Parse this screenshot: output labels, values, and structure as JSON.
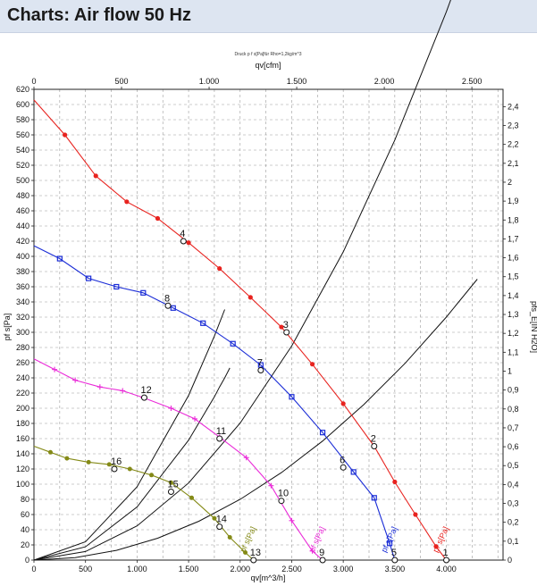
{
  "page": {
    "title": "Charts: Air flow 50 Hz"
  },
  "chart_data": {
    "type": "line",
    "title": "Druck p f s[Pa]für Rho=1,2kg/m^3",
    "x_top_label": "qv[cfm]",
    "x_bottom_label": "qv[m^3/h]",
    "y_left_label": "pf s[Pa]",
    "y_right_label": "pfs_E[IN H2O]",
    "x_range": [
      0,
      4550
    ],
    "x_bottom_ticks": [
      0,
      500,
      1000,
      1500,
      2000,
      2500,
      3000,
      3500,
      4000
    ],
    "x_bottom_tick_labels": [
      "0",
      "500",
      "1.000",
      "1.500",
      "2.000",
      "2.500",
      "3.000",
      "3.500",
      "4.000"
    ],
    "x_top_ticks": [
      0,
      500,
      1000,
      1500,
      2000,
      2500
    ],
    "x_top_tick_labels": [
      "0",
      "500",
      "1.000",
      "1.500",
      "2.000",
      "2.500"
    ],
    "y_range": [
      0,
      620
    ],
    "y_left_ticks": [
      0,
      20,
      40,
      60,
      80,
      100,
      120,
      140,
      160,
      180,
      200,
      220,
      240,
      260,
      280,
      300,
      320,
      340,
      360,
      380,
      400,
      420,
      440,
      460,
      480,
      500,
      520,
      540,
      560,
      580,
      600,
      620
    ],
    "y_left_tick_labels": [
      "0",
      "20",
      "40",
      "60",
      "80",
      "100",
      "120",
      "140",
      "160",
      "180",
      "200",
      "220",
      "240",
      "260",
      "280",
      "300",
      "320",
      "340",
      "360",
      "380",
      "400",
      "420",
      "440",
      "460",
      "480",
      "500",
      "520",
      "540",
      "560",
      "580",
      "600",
      "620"
    ],
    "y_right_range": [
      0,
      2.5
    ],
    "y_right_ticks": [
      0,
      0.1,
      0.2,
      0.3,
      0.4,
      0.5,
      0.6,
      0.7,
      0.8,
      0.9,
      1,
      1.1,
      1.2,
      1.3,
      1.4,
      1.5,
      1.6,
      1.7,
      1.8,
      1.9,
      2,
      2.1,
      2.2,
      2.3,
      2.4,
      2.5
    ],
    "y_right_tick_labels": [
      "0",
      "0,1",
      "0,2",
      "0,3",
      "0,4",
      "0,5",
      "0,6",
      "0,7",
      "0,8",
      "0,9",
      "1",
      "1,1",
      "1,2",
      "1,3",
      "1,4",
      "1,5",
      "1,6",
      "1,7",
      "1,8",
      "1,9",
      "2",
      "2,1",
      "2,2",
      "2,3",
      "2,4",
      "2,5"
    ],
    "grid": true,
    "series": [
      {
        "name": "pf s[Pa]",
        "color": "#e8231f",
        "marker": "dot",
        "x": [
          0,
          300,
          600,
          900,
          1200,
          1500,
          1800,
          2100,
          2400,
          2700,
          3000,
          3300,
          3500,
          3700,
          3900,
          4000
        ],
        "y": [
          606,
          560,
          506,
          472,
          450,
          418,
          384,
          346,
          307,
          258,
          206,
          150,
          103,
          60,
          18,
          0
        ]
      },
      {
        "name": "pf s[Pa]",
        "color": "#1a2cd6",
        "marker": "square",
        "x": [
          0,
          250,
          530,
          800,
          1060,
          1350,
          1640,
          1930,
          2200,
          2500,
          2800,
          3100,
          3300,
          3450,
          3500
        ],
        "y": [
          414,
          397,
          371,
          360,
          352,
          332,
          312,
          285,
          257,
          215,
          168,
          116,
          82,
          22,
          0
        ]
      },
      {
        "name": "pf s[Pa]",
        "color": "#ea2bd8",
        "marker": "plus",
        "x": [
          0,
          200,
          400,
          640,
          860,
          1060,
          1330,
          1560,
          1800,
          2060,
          2300,
          2500,
          2700,
          2800
        ],
        "y": [
          265,
          251,
          237,
          228,
          223,
          214,
          200,
          186,
          162,
          135,
          98,
          52,
          12,
          0
        ]
      },
      {
        "name": "pf s[Pa]",
        "color": "#848a17",
        "marker": "diamond",
        "x": [
          0,
          160,
          320,
          530,
          730,
          930,
          1140,
          1330,
          1530,
          1750,
          1900,
          2050,
          2130
        ],
        "y": [
          150,
          142,
          134,
          129,
          126,
          120,
          112,
          102,
          82,
          55,
          30,
          10,
          0
        ]
      }
    ],
    "system_curves": [
      {
        "x": [
          0,
          500,
          1000,
          1500,
          1750,
          1800,
          1850,
          1900
        ],
        "y": [
          0,
          17.5,
          70,
          158,
          215,
          228,
          240,
          253
        ]
      },
      {
        "x": [
          0,
          500,
          1000,
          1500,
          2000,
          2500,
          3000,
          3500,
          4000,
          4200
        ],
        "y": [
          0,
          11.3,
          45.1,
          101.5,
          180.5,
          282,
          406,
          553,
          722,
          796
        ]
      }
    ],
    "system_curves_steep": [
      {
        "x": [
          0,
          500,
          1000,
          1500,
          1750,
          1850
        ],
        "y": [
          0,
          24.1,
          96.5,
          217,
          295,
          330
        ]
      },
      {
        "x": [
          0,
          400,
          800,
          1200,
          1600,
          2000,
          2400,
          2800,
          3200,
          3600,
          4000,
          4300
        ],
        "y": [
          0,
          3.2,
          12.8,
          28.8,
          51.2,
          80,
          115.2,
          156.8,
          204.8,
          259.2,
          320,
          370
        ]
      }
    ],
    "operating_points": [
      {
        "label": "2",
        "x": 3300,
        "y": 150
      },
      {
        "label": "3",
        "x": 2450,
        "y": 300
      },
      {
        "label": "4",
        "x": 1450,
        "y": 420
      },
      {
        "label": "6",
        "x": 3000,
        "y": 122
      },
      {
        "label": "7",
        "x": 2200,
        "y": 250
      },
      {
        "label": "8",
        "x": 1300,
        "y": 335
      },
      {
        "label": "10",
        "x": 2400,
        "y": 78
      },
      {
        "label": "11",
        "x": 1800,
        "y": 160
      },
      {
        "label": "12",
        "x": 1070,
        "y": 214
      },
      {
        "label": "14",
        "x": 1800,
        "y": 44
      },
      {
        "label": "15",
        "x": 1330,
        "y": 90
      },
      {
        "label": "16",
        "x": 780,
        "y": 120
      },
      {
        "label": "1",
        "x": 4000,
        "y": 0
      },
      {
        "label": "5",
        "x": 3500,
        "y": 0
      },
      {
        "label": "9",
        "x": 2800,
        "y": 0
      },
      {
        "label": "13",
        "x": 2130,
        "y": 0
      }
    ],
    "curve_end_labels": [
      "pf s[Pa]",
      "pf s[Pa]",
      "pf s[Pa]",
      "pf s[Pa]"
    ]
  }
}
